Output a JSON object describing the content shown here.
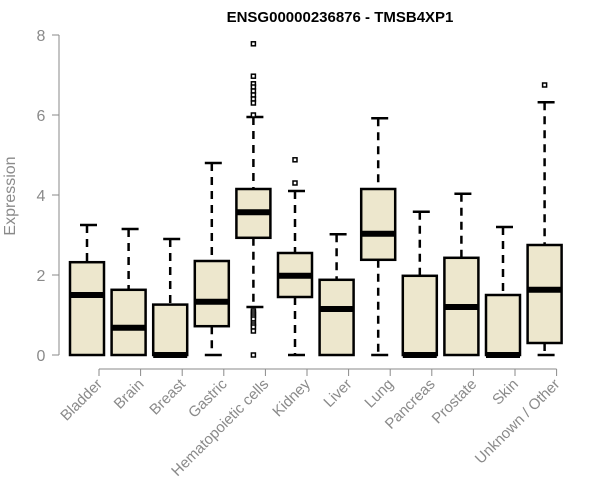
{
  "chart_data": {
    "type": "boxplot",
    "title": "ENSG00000236876 - TMSB4XP1",
    "xlabel": "",
    "ylabel": "Expression",
    "ylim": [
      0,
      8
    ],
    "yticks": [
      0,
      2,
      4,
      6,
      8
    ],
    "grid": false,
    "colors": {
      "box_fill": "#ede7cd",
      "stroke": "#000000",
      "axis": "#8a8a8a"
    },
    "categories": [
      "Bladder",
      "Brain",
      "Breast",
      "Gastric",
      "Hematopoietic cells",
      "Kidney",
      "Liver",
      "Lung",
      "Pancreas",
      "Prostate",
      "Skin",
      "Unknown / Other"
    ],
    "series": [
      {
        "name": "Bladder",
        "whisker_low": 0,
        "q1": 0,
        "median": 1.5,
        "q3": 2.32,
        "whisker_high": 3.25,
        "outliers": []
      },
      {
        "name": "Brain",
        "whisker_low": 0,
        "q1": 0,
        "median": 0.68,
        "q3": 1.63,
        "whisker_high": 3.15,
        "outliers": []
      },
      {
        "name": "Breast",
        "whisker_low": 0,
        "q1": 0,
        "median": 0,
        "q3": 1.26,
        "whisker_high": 2.9,
        "outliers": []
      },
      {
        "name": "Gastric",
        "whisker_low": 0,
        "q1": 0.72,
        "median": 1.33,
        "q3": 2.35,
        "whisker_high": 4.8,
        "outliers": []
      },
      {
        "name": "Hematopoietic cells",
        "whisker_low": 1.2,
        "q1": 2.93,
        "median": 3.57,
        "q3": 4.15,
        "whisker_high": 5.95,
        "outliers": [
          7.78,
          6.97,
          6.78,
          6.7,
          6.6,
          6.5,
          6.4,
          6.3,
          6.0,
          1.1,
          1.05,
          1.0,
          0.95,
          0.9,
          0.8,
          0.75,
          0.7,
          0.6,
          0
        ]
      },
      {
        "name": "Kidney",
        "whisker_low": 0,
        "q1": 1.45,
        "median": 1.98,
        "q3": 2.55,
        "whisker_high": 4.1,
        "outliers": [
          4.3,
          4.88
        ]
      },
      {
        "name": "Liver",
        "whisker_low": 0,
        "q1": 0,
        "median": 1.15,
        "q3": 1.88,
        "whisker_high": 3.02,
        "outliers": []
      },
      {
        "name": "Lung",
        "whisker_low": 0,
        "q1": 2.38,
        "median": 3.03,
        "q3": 4.15,
        "whisker_high": 5.92,
        "outliers": []
      },
      {
        "name": "Pancreas",
        "whisker_low": 0,
        "q1": 0,
        "median": 0,
        "q3": 1.98,
        "whisker_high": 3.58,
        "outliers": []
      },
      {
        "name": "Prostate",
        "whisker_low": 0,
        "q1": 0,
        "median": 1.2,
        "q3": 2.43,
        "whisker_high": 4.03,
        "outliers": []
      },
      {
        "name": "Skin",
        "whisker_low": 0,
        "q1": 0,
        "median": 0,
        "q3": 1.5,
        "whisker_high": 3.2,
        "outliers": []
      },
      {
        "name": "Unknown / Other",
        "whisker_low": 0,
        "q1": 0.3,
        "median": 1.63,
        "q3": 2.75,
        "whisker_high": 6.32,
        "outliers": [
          6.75
        ]
      }
    ]
  }
}
